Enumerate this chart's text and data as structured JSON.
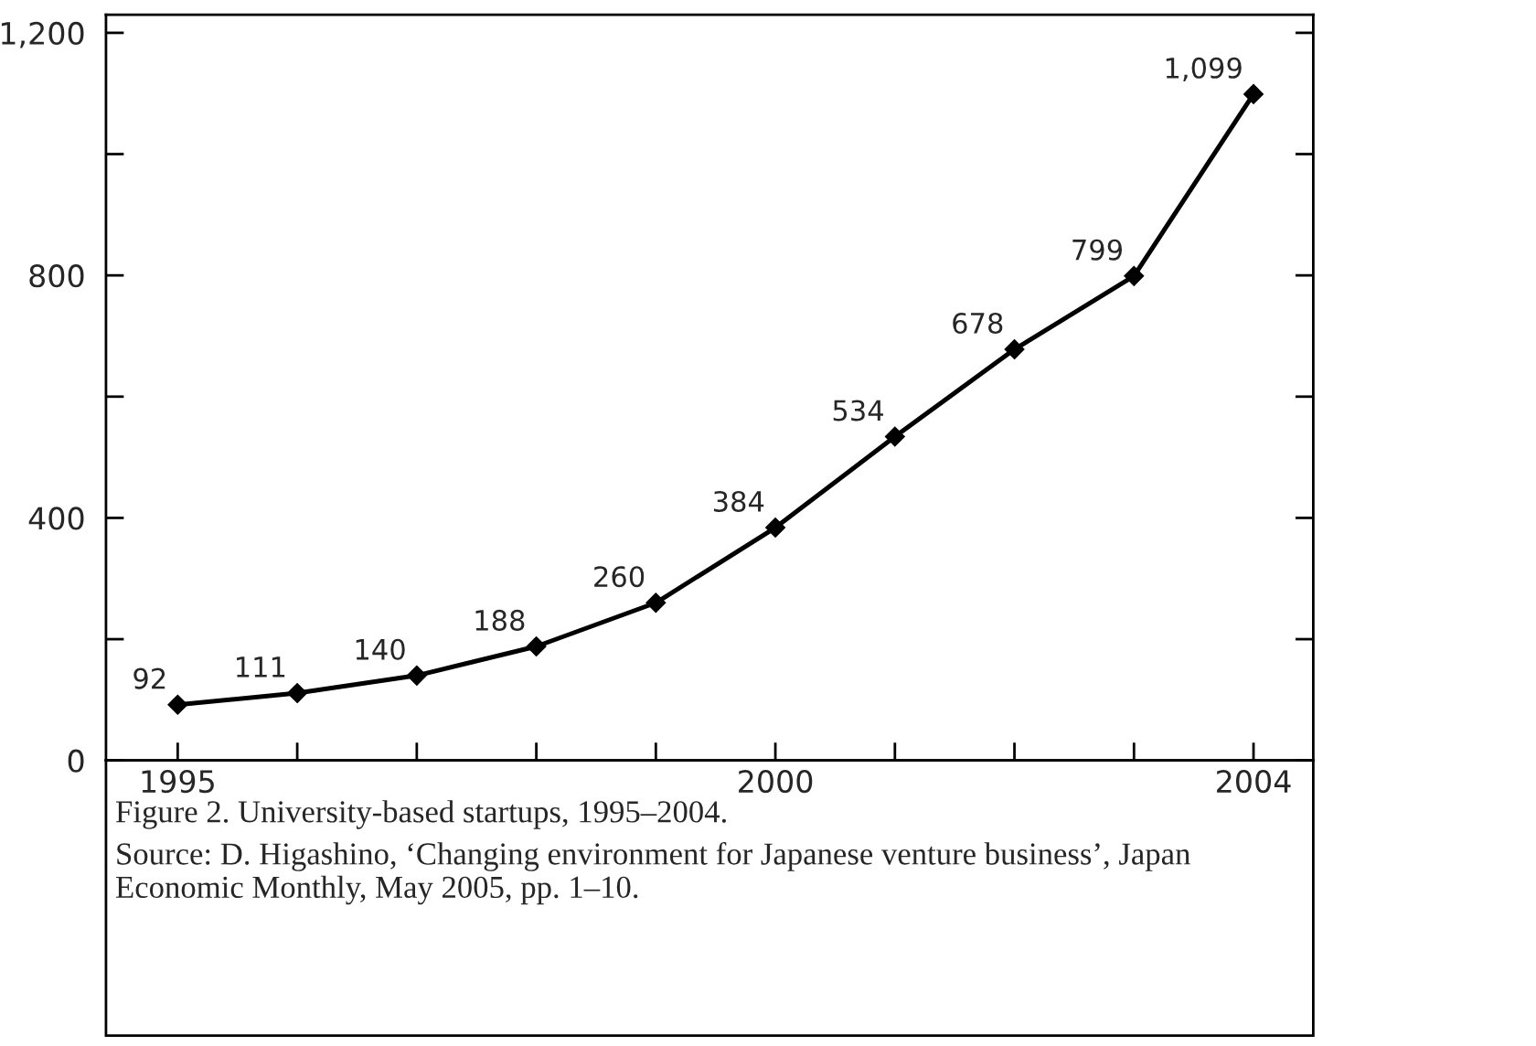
{
  "chart_data": {
    "type": "line",
    "x": [
      1995,
      1996,
      1997,
      1998,
      1999,
      2000,
      2001,
      2002,
      2003,
      2004
    ],
    "series": [
      {
        "color": "#000000",
        "values": [
          92,
          111,
          140,
          188,
          260,
          384,
          534,
          678,
          799,
          1099
        ],
        "value_labels": [
          "92",
          "111",
          "140",
          "188",
          "260",
          "384",
          "534",
          "678",
          "799",
          "1,099"
        ]
      }
    ],
    "xlim": [
      1994.4,
      2004.5
    ],
    "ylim": [
      0,
      1230
    ],
    "xticks": [
      1995,
      {
        "value": 1996,
        "label": null
      },
      {
        "value": 1997,
        "label": null
      },
      {
        "value": 1998,
        "label": null
      },
      {
        "value": 1999,
        "label": null
      },
      2000,
      {
        "value": 2001,
        "label": null
      },
      {
        "value": 2002,
        "label": null
      },
      {
        "value": 2003,
        "label": null
      },
      2004
    ],
    "yticks": [
      0,
      {
        "value": 200,
        "label": null
      },
      400,
      {
        "value": 600,
        "label": null
      },
      800,
      {
        "value": 1000,
        "label": null
      },
      {
        "value": 1200,
        "label": "1,200"
      }
    ],
    "marker": "diamond",
    "line_style": "solid",
    "grid": false,
    "legend": false,
    "annotations": [
      "Figure 2. University-based startups, 1995–2004.",
      "Source: D. Higashino, ‘Changing environment for Japanese venture business’, Japan Economic Monthly, May 2005, pp. 1–10."
    ]
  }
}
